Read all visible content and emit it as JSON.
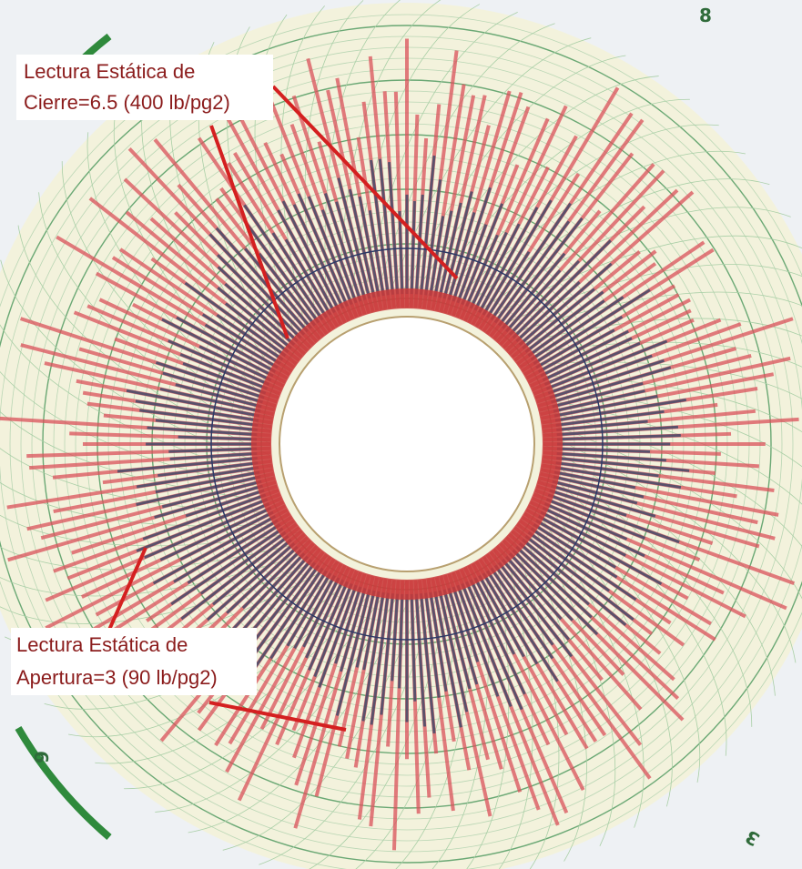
{
  "annotations": [
    {
      "lines": [
        "Lectura Estática de",
        "Cierre=6.5 (400 lb/pg2)"
      ]
    },
    {
      "lines": [
        "Lectura Estática de",
        "Apertura=3 (90 lb/pg2)"
      ]
    }
  ],
  "disc_labels": [
    "8",
    "3",
    "6"
  ]
}
